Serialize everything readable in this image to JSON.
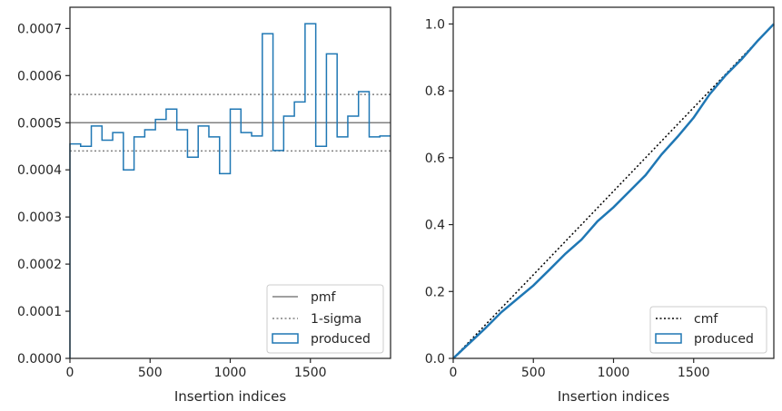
{
  "chart_data": [
    {
      "type": "histogram",
      "xlabel": "Insertion indices",
      "ylabel": "",
      "xlim": [
        0,
        2000
      ],
      "ylim": [
        0,
        0.000745
      ],
      "xticks": [
        0,
        500,
        1000,
        1500
      ],
      "xtick_labels": [
        "0",
        "500",
        "1000",
        "1500"
      ],
      "yticks": [
        0,
        0.0001,
        0.0002,
        0.0003,
        0.0004,
        0.0005,
        0.0006,
        0.0007
      ],
      "ytick_labels": [
        "0.0000",
        "0.0001",
        "0.0002",
        "0.0003",
        "0.0004",
        "0.0005",
        "0.0006",
        "0.0007"
      ],
      "bin_width": 66.67,
      "bin_edges_start": 0,
      "series": [
        {
          "name": "produced",
          "values": [
            0.000455,
            0.00045,
            0.000493,
            0.000463,
            0.000479,
            0.0004,
            0.00047,
            0.000485,
            0.000507,
            0.000529,
            0.000485,
            0.000427,
            0.000493,
            0.00047,
            0.000392,
            0.000529,
            0.000479,
            0.000472,
            0.000689,
            0.000441,
            0.000514,
            0.000544,
            0.00071,
            0.00045,
            0.000646,
            0.00047,
            0.000514,
            0.000566,
            0.00047,
            0.000472
          ],
          "color": "#1f77b4"
        }
      ],
      "reference_lines": [
        {
          "name": "pmf",
          "value": 0.0005,
          "style": "solid",
          "color": "#808080"
        },
        {
          "name": "1-sigma",
          "values": [
            0.00044,
            0.00056
          ],
          "style": "dotted",
          "color": "#808080"
        }
      ],
      "legend": {
        "position": "bottom-right",
        "entries": [
          "pmf",
          "1-sigma",
          "produced"
        ]
      }
    },
    {
      "type": "line",
      "xlabel": "Insertion indices",
      "ylabel": "",
      "xlim": [
        0,
        2000
      ],
      "ylim": [
        0,
        1.05
      ],
      "xticks": [
        0,
        500,
        1000,
        1500
      ],
      "xtick_labels": [
        "0",
        "500",
        "1000",
        "1500"
      ],
      "yticks": [
        0.0,
        0.2,
        0.4,
        0.6,
        0.8,
        1.0
      ],
      "ytick_labels": [
        "0.0",
        "0.2",
        "0.4",
        "0.6",
        "0.8",
        "1.0"
      ],
      "series": [
        {
          "name": "cmf",
          "x": [
            0,
            2000
          ],
          "y": [
            0,
            1.0
          ],
          "style": "dotted",
          "color": "#000000"
        },
        {
          "name": "produced",
          "x": [
            0,
            100,
            200,
            300,
            400,
            500,
            600,
            700,
            800,
            900,
            1000,
            1100,
            1200,
            1300,
            1400,
            1500,
            1600,
            1700,
            1800,
            1900,
            2000
          ],
          "y": [
            0,
            0.045,
            0.09,
            0.138,
            0.178,
            0.218,
            0.265,
            0.313,
            0.355,
            0.41,
            0.452,
            0.5,
            0.548,
            0.61,
            0.663,
            0.72,
            0.79,
            0.847,
            0.895,
            0.95,
            1.0
          ],
          "style": "solid",
          "color": "#1f77b4"
        }
      ],
      "legend": {
        "position": "bottom-right",
        "entries": [
          "cmf",
          "produced"
        ]
      }
    }
  ]
}
